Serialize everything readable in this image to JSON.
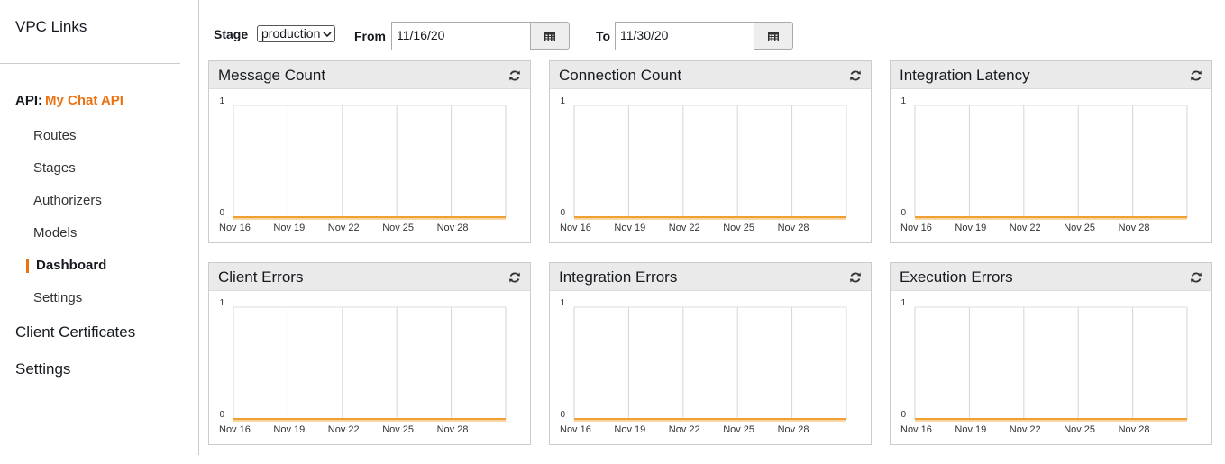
{
  "sidebar": {
    "items": [
      "VPC Links"
    ],
    "api_label": "API:",
    "api_name": "My Chat API",
    "sub_items": [
      "Routes",
      "Stages",
      "Authorizers",
      "Models",
      "Dashboard",
      "Settings"
    ],
    "bottom_items": [
      "Client Certificates",
      "Settings"
    ]
  },
  "toolbar": {
    "stage_label": "Stage",
    "stage_value": "production",
    "from_label": "From",
    "from_value": "11/16/20",
    "to_label": "To",
    "to_value": "11/30/20"
  },
  "chart_data": [
    {
      "type": "line",
      "title": "Message Count",
      "categories": [
        "Nov 16",
        "Nov 19",
        "Nov 22",
        "Nov 25",
        "Nov 28",
        null
      ],
      "values": [
        0,
        0,
        0,
        0,
        0,
        0
      ],
      "color": "#f0a030",
      "ylim": [
        0,
        1
      ],
      "yticks": [
        0,
        1
      ],
      "grid": true
    },
    {
      "type": "line",
      "title": "Connection Count",
      "categories": [
        "Nov 16",
        "Nov 19",
        "Nov 22",
        "Nov 25",
        "Nov 28",
        null
      ],
      "values": [
        0,
        0,
        0,
        0,
        0,
        0
      ],
      "color": "#f0a030",
      "ylim": [
        0,
        1
      ],
      "yticks": [
        0,
        1
      ],
      "grid": true
    },
    {
      "type": "line",
      "title": "Integration Latency",
      "categories": [
        "Nov 16",
        "Nov 19",
        "Nov 22",
        "Nov 25",
        "Nov 28",
        null
      ],
      "values": [
        0,
        0,
        0,
        0,
        0,
        0
      ],
      "color": "#f0a030",
      "ylim": [
        0,
        1
      ],
      "yticks": [
        0,
        1
      ],
      "grid": true
    },
    {
      "type": "line",
      "title": "Client Errors",
      "categories": [
        "Nov 16",
        "Nov 19",
        "Nov 22",
        "Nov 25",
        "Nov 28",
        null
      ],
      "values": [
        0,
        0,
        0,
        0,
        0,
        0
      ],
      "color": "#f0a030",
      "ylim": [
        0,
        1
      ],
      "yticks": [
        0,
        1
      ],
      "grid": true
    },
    {
      "type": "line",
      "title": "Integration Errors",
      "categories": [
        "Nov 16",
        "Nov 19",
        "Nov 22",
        "Nov 25",
        "Nov 28",
        null
      ],
      "values": [
        0,
        0,
        0,
        0,
        0,
        0
      ],
      "color": "#f0a030",
      "ylim": [
        0,
        1
      ],
      "yticks": [
        0,
        1
      ],
      "grid": true
    },
    {
      "type": "line",
      "title": "Execution Errors",
      "categories": [
        "Nov 16",
        "Nov 19",
        "Nov 22",
        "Nov 25",
        "Nov 28",
        null
      ],
      "values": [
        0,
        0,
        0,
        0,
        0,
        0
      ],
      "color": "#f0a030",
      "ylim": [
        0,
        1
      ],
      "yticks": [
        0,
        1
      ],
      "grid": true
    }
  ]
}
